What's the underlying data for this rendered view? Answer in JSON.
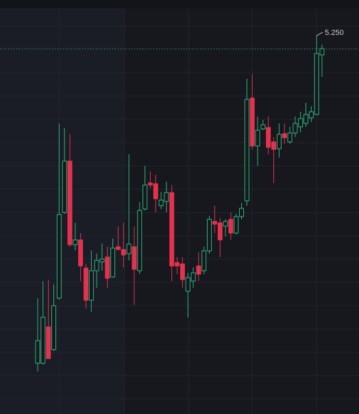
{
  "chart_data": {
    "type": "candlestick",
    "up_color": "#2fb57f",
    "down_color": "#e2324f",
    "ylim": [
      2.49,
      5.51
    ],
    "grid": true,
    "open": [
      2.86,
      2.86,
      3.125,
      2.96,
      3.335,
      3.96,
      4.335,
      3.725,
      3.76,
      3.555,
      3.32,
      3.535,
      3.6,
      3.635,
      3.49,
      3.71,
      3.69,
      3.66,
      3.71,
      3.535,
      3.985,
      4.175,
      4.17,
      4.01,
      4.04,
      4.105,
      3.595,
      3.585,
      3.385,
      3.46,
      3.57,
      3.535,
      3.68,
      3.895,
      3.885,
      3.86,
      3.91,
      3.81,
      3.93,
      4.045,
      4.795,
      4.445,
      4.57,
      4.58,
      4.475,
      4.425,
      4.535,
      4.475,
      4.54,
      4.585,
      4.61,
      4.65,
      4.675,
      5.11
    ],
    "high": [
      3.335,
      3.46,
      3.47,
      3.435,
      4.61,
      4.575,
      4.53,
      3.885,
      3.81,
      3.585,
      3.685,
      3.66,
      3.735,
      3.71,
      3.77,
      3.86,
      3.885,
      4.385,
      3.86,
      4.035,
      4.3,
      4.26,
      4.235,
      4.11,
      4.185,
      4.16,
      3.635,
      3.635,
      3.52,
      3.56,
      3.67,
      3.71,
      3.935,
      4.01,
      3.92,
      3.91,
      3.96,
      3.95,
      4.03,
      4.935,
      4.97,
      4.66,
      4.635,
      4.66,
      4.51,
      4.61,
      4.61,
      4.585,
      4.66,
      4.695,
      4.76,
      4.735,
      5.25,
      5.185
    ],
    "low": [
      2.8,
      2.85,
      2.89,
      2.95,
      3.325,
      3.95,
      3.71,
      3.685,
      3.46,
      3.26,
      3.235,
      3.41,
      3.535,
      3.41,
      3.485,
      3.685,
      3.56,
      3.61,
      3.285,
      3.51,
      3.975,
      4.135,
      3.96,
      3.985,
      3.96,
      3.46,
      3.51,
      3.41,
      3.195,
      3.41,
      3.46,
      3.51,
      3.66,
      3.81,
      3.635,
      3.785,
      3.76,
      3.8,
      3.91,
      4.01,
      4.42,
      4.3,
      4.56,
      4.385,
      4.175,
      4.36,
      4.46,
      4.46,
      4.51,
      4.545,
      4.585,
      4.62,
      4.67,
      4.95
    ],
    "close": [
      3.025,
      3.195,
      2.895,
      3.28,
      3.945,
      4.335,
      3.725,
      3.76,
      3.57,
      3.32,
      3.535,
      3.61,
      3.62,
      3.48,
      3.7,
      3.69,
      3.65,
      3.73,
      3.545,
      3.975,
      4.16,
      4.16,
      4.06,
      4.05,
      4.105,
      3.57,
      3.57,
      3.47,
      3.485,
      3.52,
      3.51,
      3.68,
      3.91,
      3.875,
      3.76,
      3.895,
      3.81,
      3.93,
      3.99,
      4.785,
      4.445,
      4.56,
      4.6,
      4.435,
      4.42,
      4.53,
      4.505,
      4.54,
      4.61,
      4.645,
      4.675,
      4.695,
      5.12,
      5.155
    ],
    "annotation": {
      "value": 5.25,
      "label": "5.250"
    }
  }
}
